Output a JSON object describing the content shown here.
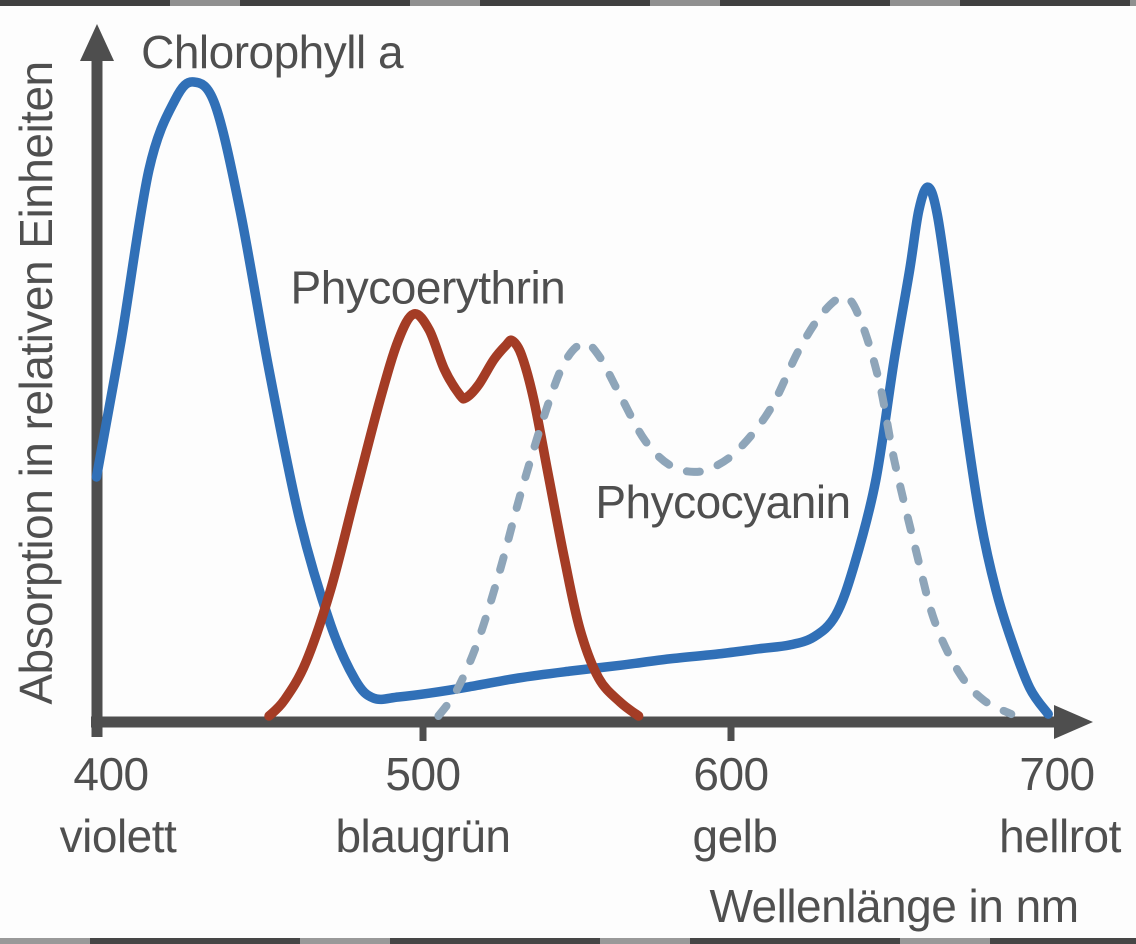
{
  "colors": {
    "background": "#fdfdfd",
    "axis": "#4e4e4e",
    "text": "#4f4f4f",
    "chlorophyll_a": "#3170b7",
    "phycoerythrin": "#a43c25",
    "phycocyanin": "#8ea5b9",
    "edge_artifact": "#363636"
  },
  "chart_data": {
    "type": "line",
    "title": "",
    "xlabel": "Wellenlänge in nm",
    "ylabel": "Absorption in relativen Einheiten",
    "x_range": [
      400,
      700
    ],
    "y_range": [
      0,
      1.05
    ],
    "grid": false,
    "legend_position": "inline-annotations",
    "x_ticks": [
      {
        "value": 400,
        "label": "400",
        "color_word": "violett"
      },
      {
        "value": 500,
        "label": "500",
        "color_word": "blaugrün"
      },
      {
        "value": 600,
        "label": "600",
        "color_word": "gelb"
      },
      {
        "value": 700,
        "label": "700",
        "color_word": "hellrot"
      }
    ],
    "series": [
      {
        "name": "Chlorophyll a",
        "style": "solid",
        "color": "#3170b7",
        "points": [
          [
            394,
            0.377
          ],
          [
            402,
            0.593
          ],
          [
            411,
            0.861
          ],
          [
            419.5,
            0.972
          ],
          [
            425.6,
            1.0
          ],
          [
            432.5,
            0.964
          ],
          [
            440.6,
            0.798
          ],
          [
            450,
            0.546
          ],
          [
            460,
            0.309
          ],
          [
            470,
            0.144
          ],
          [
            478,
            0.057
          ],
          [
            484,
            0.028
          ],
          [
            492,
            0.03
          ],
          [
            502,
            0.036
          ],
          [
            515,
            0.046
          ],
          [
            531,
            0.06
          ],
          [
            548,
            0.071
          ],
          [
            564,
            0.08
          ],
          [
            580,
            0.09
          ],
          [
            596,
            0.098
          ],
          [
            609,
            0.106
          ],
          [
            619,
            0.112
          ],
          [
            627,
            0.125
          ],
          [
            634,
            0.159
          ],
          [
            640,
            0.238
          ],
          [
            647,
            0.372
          ],
          [
            653,
            0.562
          ],
          [
            658,
            0.703
          ],
          [
            661,
            0.798
          ],
          [
            664,
            0.834
          ],
          [
            667,
            0.79
          ],
          [
            671,
            0.656
          ],
          [
            676,
            0.467
          ],
          [
            681,
            0.309
          ],
          [
            686,
            0.199
          ],
          [
            691,
            0.12
          ],
          [
            697,
            0.044
          ],
          [
            703,
            0.003
          ]
        ]
      },
      {
        "name": "Phycoerythrin",
        "style": "solid",
        "color": "#a43c25",
        "points": [
          [
            450,
            0.0
          ],
          [
            455,
            0.025
          ],
          [
            462,
            0.085
          ],
          [
            470,
            0.199
          ],
          [
            478,
            0.349
          ],
          [
            486,
            0.498
          ],
          [
            492,
            0.593
          ],
          [
            497,
            0.634
          ],
          [
            502,
            0.609
          ],
          [
            507,
            0.546
          ],
          [
            512,
            0.506
          ],
          [
            514,
            0.502
          ],
          [
            518,
            0.522
          ],
          [
            523,
            0.562
          ],
          [
            527,
            0.585
          ],
          [
            529,
            0.592
          ],
          [
            532,
            0.569
          ],
          [
            536,
            0.498
          ],
          [
            541,
            0.372
          ],
          [
            546,
            0.246
          ],
          [
            551,
            0.136
          ],
          [
            557,
            0.06
          ],
          [
            564,
            0.022
          ],
          [
            570,
            0.0
          ]
        ]
      },
      {
        "name": "Phycocyanin",
        "style": "dashed",
        "color": "#8ea5b9",
        "points": [
          [
            505,
            0.0
          ],
          [
            511,
            0.041
          ],
          [
            518,
            0.12
          ],
          [
            525,
            0.23
          ],
          [
            532,
            0.356
          ],
          [
            540,
            0.483
          ],
          [
            546,
            0.558
          ],
          [
            552,
            0.588
          ],
          [
            557,
            0.569
          ],
          [
            564,
            0.506
          ],
          [
            572,
            0.435
          ],
          [
            580,
            0.396
          ],
          [
            588,
            0.385
          ],
          [
            595,
            0.394
          ],
          [
            603,
            0.423
          ],
          [
            613,
            0.486
          ],
          [
            622,
            0.577
          ],
          [
            630,
            0.637
          ],
          [
            637,
            0.661
          ],
          [
            642,
            0.625
          ],
          [
            648,
            0.53
          ],
          [
            653,
            0.404
          ],
          [
            660,
            0.262
          ],
          [
            666,
            0.151
          ],
          [
            674,
            0.069
          ],
          [
            682,
            0.025
          ],
          [
            691,
            0.003
          ]
        ]
      }
    ],
    "annotations": [
      {
        "text": "Chlorophyll a",
        "x": 451,
        "y": 1.022
      },
      {
        "text": "Phycoerythrin",
        "x": 501.6,
        "y": 0.651
      },
      {
        "text": "Phycocyanin",
        "x": 597.4,
        "y": 0.312
      }
    ]
  }
}
